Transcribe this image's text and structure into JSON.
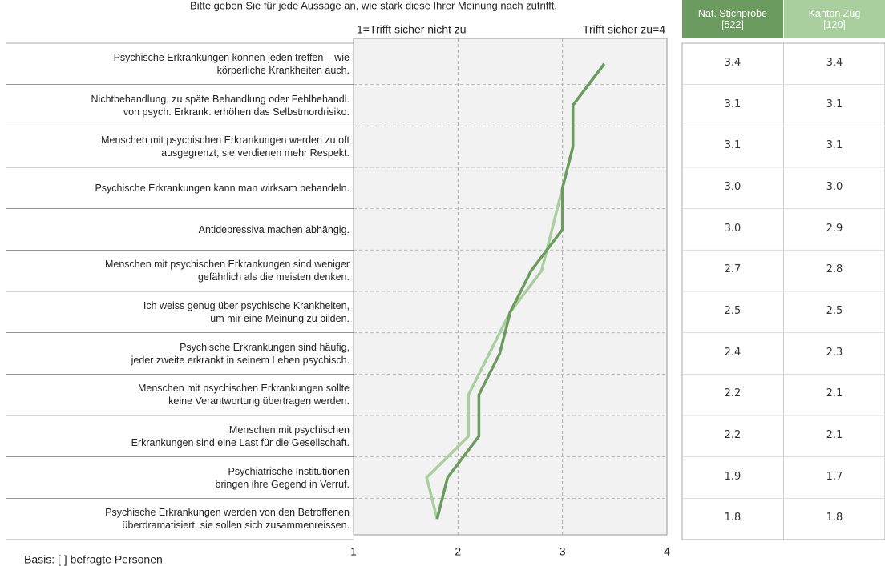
{
  "chart_data": {
    "type": "line",
    "title": "Bitte geben Sie für jede Aussage an, wie stark diese Ihrer Meinung nach zutrifft.",
    "scale_low_label": "1=Trifft sicher nicht zu",
    "scale_high_label": "Trifft sicher zu=4",
    "footnote": "Basis: [ ] befragte Personen",
    "categories": [
      "Psychische Erkrankungen können jeden treffen – wie\nkörperliche Krankheiten auch.",
      "Nichtbehandlung, zu späte Behandlung oder Fehlbehandl.\nvon psych. Erkrank. erhöhen das Selbstmordrisiko.",
      "Menschen mit psychischen Erkrankungen werden zu oft\nausgegrenzt, sie verdienen mehr Respekt.",
      "Psychische Erkrankungen kann man wirksam behandeln.",
      "Antidepressiva machen abhängig.",
      "Menschen mit psychischen Erkrankungen sind weniger\ngefährlich als die meisten denken.",
      "Ich weiss genug über psychische Krankheiten,\num mir eine Meinung zu bilden.",
      "Psychische Erkrankungen sind häufig,\njeder zweite erkrankt in seinem Leben psychisch.",
      "Menschen mit psychischen Erkrankungen sollte\nkeine Verantwortung übertragen werden.",
      "Menschen mit psychischen\nErkrankungen sind eine Last für die Gesellschaft.",
      "Psychiatrische Institutionen\nbringen ihre Gegend in Verruf.",
      "Psychische Erkrankungen werden von den Betroffenen\nüberdramatisiert, sie sollen sich zusammenreissen."
    ],
    "series": [
      {
        "name": "Nat. Stichprobe\n[522]",
        "color": "#6b9b5e",
        "values": [
          3.4,
          3.1,
          3.1,
          3.0,
          3.0,
          2.7,
          2.5,
          2.4,
          2.2,
          2.2,
          1.9,
          1.8
        ],
        "value_labels": [
          "3.4",
          "3.1",
          "3.1",
          "3.0",
          "3.0",
          "2.7",
          "2.5",
          "2.4",
          "2.2",
          "2.2",
          "1.9",
          "1.8"
        ]
      },
      {
        "name": "Kanton Zug\n[120]",
        "color": "#a9cf9f",
        "values": [
          3.4,
          3.1,
          3.1,
          3.0,
          2.9,
          2.8,
          2.5,
          2.3,
          2.1,
          2.1,
          1.7,
          1.8
        ],
        "value_labels": [
          "3.4",
          "3.1",
          "3.1",
          "3.0",
          "2.9",
          "2.8",
          "2.5",
          "2.3",
          "2.1",
          "2.1",
          "1.7",
          "1.8"
        ]
      }
    ],
    "xlim": [
      1,
      4
    ],
    "xticks": [
      1,
      2,
      3,
      4
    ],
    "grid": true
  }
}
